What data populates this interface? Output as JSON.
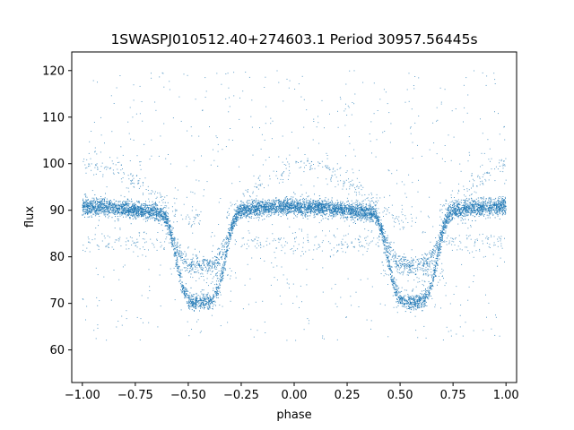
{
  "chart_data": {
    "type": "scatter",
    "title": "1SWASPJ010512.40+274603.1 Period 30957.56445s",
    "xlabel": "phase",
    "ylabel": "flux",
    "xlim": [
      -1.05,
      1.05
    ],
    "ylim": [
      53,
      124
    ],
    "xticks": [
      -1.0,
      -0.75,
      -0.5,
      -0.25,
      0.0,
      0.25,
      0.5,
      0.75,
      1.0
    ],
    "xtick_labels": [
      "−1.00",
      "−0.75",
      "−0.50",
      "−0.25",
      "0.00",
      "0.25",
      "0.50",
      "0.75",
      "1.00"
    ],
    "yticks": [
      60,
      70,
      80,
      90,
      100,
      110,
      120
    ],
    "ytick_labels": [
      "60",
      "70",
      "80",
      "90",
      "100",
      "110",
      "120"
    ],
    "grid": false,
    "marker_color": "#1f77b4",
    "phase_range": [
      -1.0,
      1.0
    ],
    "light_curve": {
      "baseline_flux": 90,
      "minima_phases": [
        -0.44,
        0.56
      ],
      "min_flux_deep": 71,
      "min_flux_shallow": 79,
      "minimum_width_phase": 0.13,
      "secondary_branches_flux": [
        100,
        83
      ]
    }
  }
}
